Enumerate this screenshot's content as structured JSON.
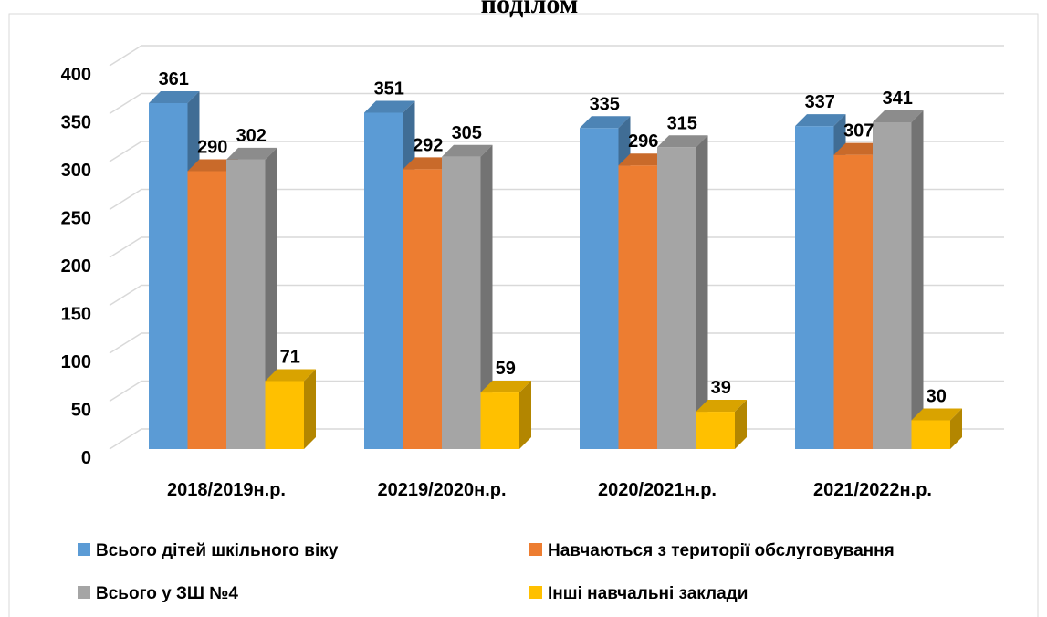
{
  "chart_data": {
    "type": "bar3d",
    "title": "поділом",
    "categories": [
      "2018/2019н.р.",
      "20219/2020н.р.",
      "2020/2021н.р.",
      "2021/2022н.р."
    ],
    "series": [
      {
        "name": "Всього дітей шкільного віку",
        "color": "#5b9bd5",
        "values": [
          361,
          351,
          335,
          337
        ]
      },
      {
        "name": "Навчаються з території обслуговування",
        "color": "#ed7d31",
        "values": [
          290,
          292,
          296,
          307
        ]
      },
      {
        "name": "Всього у ЗШ №4",
        "color": "#a5a5a5",
        "values": [
          302,
          305,
          315,
          341
        ]
      },
      {
        "name": "Інші навчальні заклади",
        "color": "#ffc000",
        "values": [
          71,
          59,
          39,
          30
        ]
      }
    ],
    "ylim": [
      0,
      400
    ],
    "yticks": [
      0,
      50,
      100,
      150,
      200,
      250,
      300,
      350,
      400
    ],
    "grid": true,
    "legend": "bottom"
  }
}
